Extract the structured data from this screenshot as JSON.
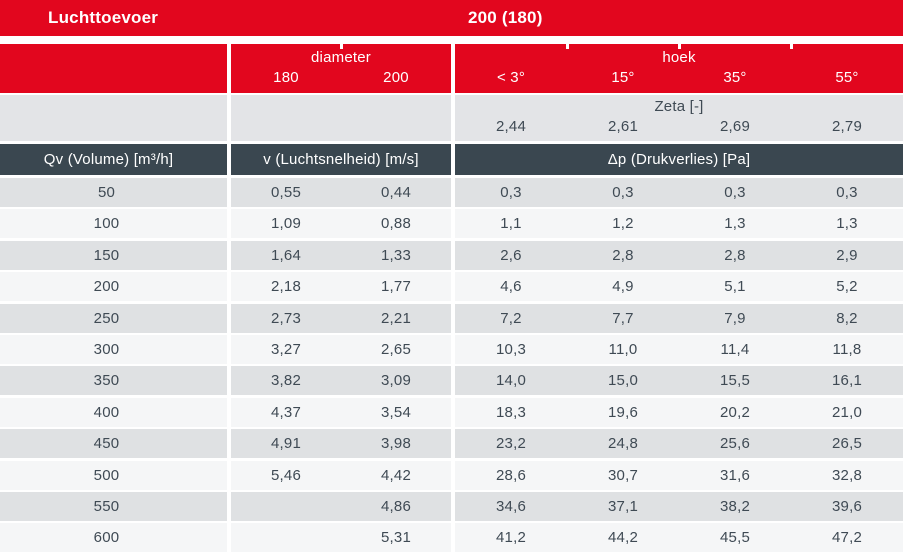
{
  "title_bar": {
    "product": "Luchttoevoer",
    "size": "200 (180)"
  },
  "columns": {
    "diameter_group": "diameter",
    "diameter_values": [
      "180",
      "200"
    ],
    "hoek_group": "hoek",
    "hoek_values": [
      "< 3°",
      "15°",
      "35°",
      "55°"
    ]
  },
  "zeta": {
    "label": "Zeta [-]",
    "values": [
      "2,44",
      "2,61",
      "2,69",
      "2,79"
    ]
  },
  "section_headers": {
    "qv": "Qv (Volume) [m³/h]",
    "v": "v (Luchtsnelheid) [m/s]",
    "dp": "Δp (Drukverlies) [Pa]"
  },
  "rows": [
    {
      "qv": "50",
      "v": [
        "0,55",
        "0,44"
      ],
      "dp": [
        "0,3",
        "0,3",
        "0,3",
        "0,3"
      ]
    },
    {
      "qv": "100",
      "v": [
        "1,09",
        "0,88"
      ],
      "dp": [
        "1,1",
        "1,2",
        "1,3",
        "1,3"
      ]
    },
    {
      "qv": "150",
      "v": [
        "1,64",
        "1,33"
      ],
      "dp": [
        "2,6",
        "2,8",
        "2,8",
        "2,9"
      ]
    },
    {
      "qv": "200",
      "v": [
        "2,18",
        "1,77"
      ],
      "dp": [
        "4,6",
        "4,9",
        "5,1",
        "5,2"
      ]
    },
    {
      "qv": "250",
      "v": [
        "2,73",
        "2,21"
      ],
      "dp": [
        "7,2",
        "7,7",
        "7,9",
        "8,2"
      ]
    },
    {
      "qv": "300",
      "v": [
        "3,27",
        "2,65"
      ],
      "dp": [
        "10,3",
        "11,0",
        "11,4",
        "11,8"
      ]
    },
    {
      "qv": "350",
      "v": [
        "3,82",
        "3,09"
      ],
      "dp": [
        "14,0",
        "15,0",
        "15,5",
        "16,1"
      ]
    },
    {
      "qv": "400",
      "v": [
        "4,37",
        "3,54"
      ],
      "dp": [
        "18,3",
        "19,6",
        "20,2",
        "21,0"
      ]
    },
    {
      "qv": "450",
      "v": [
        "4,91",
        "3,98"
      ],
      "dp": [
        "23,2",
        "24,8",
        "25,6",
        "26,5"
      ]
    },
    {
      "qv": "500",
      "v": [
        "5,46",
        "4,42"
      ],
      "dp": [
        "28,6",
        "30,7",
        "31,6",
        "32,8"
      ]
    },
    {
      "qv": "550",
      "v": [
        "",
        "4,86"
      ],
      "dp": [
        "34,6",
        "37,1",
        "38,2",
        "39,6"
      ]
    },
    {
      "qv": "600",
      "v": [
        "",
        "5,31"
      ],
      "dp": [
        "41,2",
        "44,2",
        "45,5",
        "47,2"
      ]
    }
  ],
  "colors": {
    "brand_red": "#e2061e",
    "header_dark": "#3a4750",
    "row_gray": "#dfe1e3",
    "row_light": "#f5f6f7",
    "zeta_bg": "#e3e4e7",
    "text_dark": "#3f4a54"
  },
  "chart_data": {
    "type": "table",
    "title": "Luchttoevoer 200 (180)",
    "columns": [
      "Qv (Volume) [m³/h]",
      "v 180 [m/s]",
      "v 200 [m/s]",
      "Δp < 3° [Pa]",
      "Δp 15° [Pa]",
      "Δp 35° [Pa]",
      "Δp 55° [Pa]"
    ],
    "zeta_per_hoek": {
      "< 3°": 2.44,
      "15°": 2.61,
      "35°": 2.69,
      "55°": 2.79
    },
    "rows": [
      [
        50,
        0.55,
        0.44,
        0.3,
        0.3,
        0.3,
        0.3
      ],
      [
        100,
        1.09,
        0.88,
        1.1,
        1.2,
        1.3,
        1.3
      ],
      [
        150,
        1.64,
        1.33,
        2.6,
        2.8,
        2.8,
        2.9
      ],
      [
        200,
        2.18,
        1.77,
        4.6,
        4.9,
        5.1,
        5.2
      ],
      [
        250,
        2.73,
        2.21,
        7.2,
        7.7,
        7.9,
        8.2
      ],
      [
        300,
        3.27,
        2.65,
        10.3,
        11.0,
        11.4,
        11.8
      ],
      [
        350,
        3.82,
        3.09,
        14.0,
        15.0,
        15.5,
        16.1
      ],
      [
        400,
        4.37,
        3.54,
        18.3,
        19.6,
        20.2,
        21.0
      ],
      [
        450,
        4.91,
        3.98,
        23.2,
        24.8,
        25.6,
        26.5
      ],
      [
        500,
        5.46,
        4.42,
        28.6,
        30.7,
        31.6,
        32.8
      ],
      [
        550,
        null,
        4.86,
        34.6,
        37.1,
        38.2,
        39.6
      ],
      [
        600,
        null,
        5.31,
        41.2,
        44.2,
        45.5,
        47.2
      ]
    ]
  }
}
